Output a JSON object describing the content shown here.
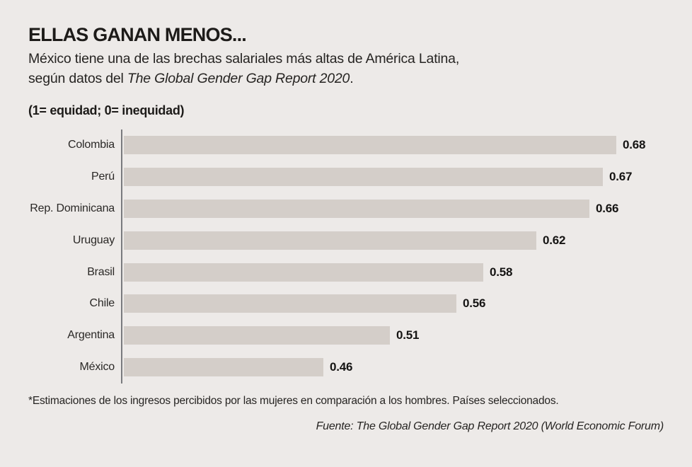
{
  "header": {
    "title": "ELLAS GANAN MENOS...",
    "subtitle_line1": "México tiene una de las brechas salariales más altas de América Latina,",
    "subtitle_line2_prefix": "según datos del ",
    "subtitle_line2_italic": "The Global Gender Gap Report 2020",
    "subtitle_line2_suffix": ".",
    "scale_note": "(1= equidad; 0= inequidad)"
  },
  "chart_data": {
    "type": "bar",
    "orientation": "horizontal",
    "title": "ELLAS GANAN MENOS...",
    "categories": [
      "Colombia",
      "Perú",
      "Rep. Dominicana",
      "Uruguay",
      "Brasil",
      "Chile",
      "Argentina",
      "México"
    ],
    "values": [
      0.68,
      0.67,
      0.66,
      0.62,
      0.58,
      0.56,
      0.51,
      0.46
    ],
    "value_labels": [
      "0.68",
      "0.67",
      "0.66",
      "0.62",
      "0.58",
      "0.56",
      "0.51",
      "0.46"
    ],
    "xlabel": "",
    "ylabel": "",
    "xlim": [
      0.31,
      0.73
    ],
    "grid": false,
    "legend": null,
    "scale_note": "(1= equidad; 0= inequidad)",
    "bar_color": "#d4cec9",
    "axis_color": "#7a7b7e",
    "background_color": "#edeae8",
    "value_label_color": "#151413"
  },
  "footer": {
    "footnote": "*Estimaciones de los ingresos percibidos por las mujeres en comparación a los hombres. Países seleccionados.",
    "source": "Fuente: The Global Gender Gap Report 2020 (World Economic Forum)"
  }
}
